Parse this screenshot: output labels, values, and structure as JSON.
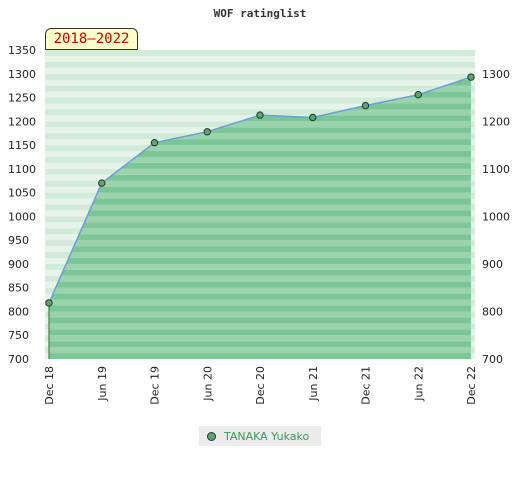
{
  "chart_data": {
    "type": "area",
    "title": "WOF ratinglist",
    "period": "2018–2022",
    "categories": [
      "Dec 18",
      "Jun 19",
      "Dec 19",
      "Jun 20",
      "Dec 20",
      "Jun 21",
      "Dec 21",
      "Jun 22",
      "Dec 22"
    ],
    "series": [
      {
        "name": "TANAKA Yukako",
        "values": [
          818,
          1070,
          1155,
          1178,
          1213,
          1208,
          1233,
          1256,
          1293
        ]
      }
    ],
    "ylim": [
      700,
      1350
    ],
    "yticks_left": [
      700,
      750,
      800,
      850,
      900,
      950,
      1000,
      1050,
      1100,
      1150,
      1200,
      1250,
      1300,
      1350
    ],
    "yticks_right": [
      700,
      800,
      900,
      1000,
      1100,
      1200,
      1300
    ],
    "grid": "horizontal bands",
    "legend_position": "bottom",
    "colors": {
      "line": "#6a9fd8",
      "fill": "#5cb87a",
      "marker": "#5fa56f",
      "period_text": "#cc0000",
      "legend_text": "#3a9a5a"
    }
  }
}
